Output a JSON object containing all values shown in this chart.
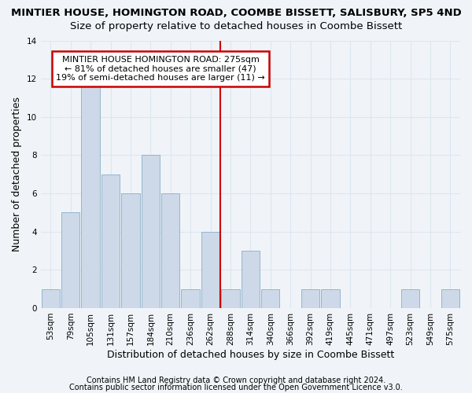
{
  "title": "MINTIER HOUSE, HOMINGTON ROAD, COOMBE BISSETT, SALISBURY, SP5 4ND",
  "subtitle": "Size of property relative to detached houses in Coombe Bissett",
  "xlabel": "Distribution of detached houses by size in Coombe Bissett",
  "ylabel": "Number of detached properties",
  "categories": [
    "53sqm",
    "79sqm",
    "105sqm",
    "131sqm",
    "157sqm",
    "184sqm",
    "210sqm",
    "236sqm",
    "262sqm",
    "288sqm",
    "314sqm",
    "340sqm",
    "366sqm",
    "392sqm",
    "419sqm",
    "445sqm",
    "471sqm",
    "497sqm",
    "523sqm",
    "549sqm",
    "575sqm"
  ],
  "values": [
    1,
    5,
    12,
    7,
    6,
    8,
    6,
    1,
    4,
    1,
    3,
    1,
    0,
    1,
    1,
    0,
    0,
    0,
    1,
    0,
    1
  ],
  "bar_color": "#cdd9e8",
  "bar_edgecolor": "#8aadc8",
  "ylim": [
    0,
    14
  ],
  "yticks": [
    0,
    2,
    4,
    6,
    8,
    10,
    12,
    14
  ],
  "vline_pos": 8.5,
  "vline_color": "#cc0000",
  "annotation_text": "MINTIER HOUSE HOMINGTON ROAD: 275sqm\n← 81% of detached houses are smaller (47)\n19% of semi-detached houses are larger (11) →",
  "annotation_box_facecolor": "#ffffff",
  "annotation_box_edgecolor": "#cc0000",
  "footer1": "Contains HM Land Registry data © Crown copyright and database right 2024.",
  "footer2": "Contains public sector information licensed under the Open Government Licence v3.0.",
  "bg_color": "#f0f4f8",
  "grid_color": "#dde6f0",
  "title_fontsize": 9.5,
  "subtitle_fontsize": 9.5,
  "label_fontsize": 9,
  "tick_fontsize": 7.5,
  "annot_fontsize": 8,
  "footer_fontsize": 7
}
